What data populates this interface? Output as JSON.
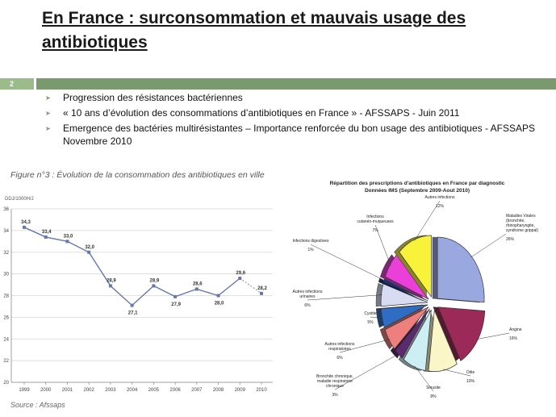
{
  "slide": {
    "title": "En France : surconsommation et mauvais usage des antibiotiques",
    "number": "2",
    "bullets": [
      "Progression des résistances bactériennes",
      "« 10 ans d’évolution des consommations d’antibiotiques en France » - AFSSAPS - Juin 2011",
      " Emergence des bactéries multirésistantes – Importance renforcée du bon usage des antibiotiques - AFSSAPS Novembre 2010"
    ],
    "bullet_icon": "arrow-bullet-icon",
    "colors": {
      "band": "#7a9a6e",
      "band_light": "#9bbb8a",
      "line": "#6677aa"
    }
  },
  "chart_data": [
    {
      "type": "line",
      "title": "Figure n°3 : Évolution de la consommation des antibiotiques en ville",
      "ylabel": "DDJ/1000H/J",
      "source": "Source : Afssaps",
      "x": [
        "1999",
        "2000",
        "2001",
        "2002",
        "2003",
        "2004",
        "2005",
        "2006",
        "2007",
        "2008",
        "2009",
        "2010"
      ],
      "values": [
        34.3,
        33.4,
        33.0,
        32.0,
        28.9,
        27.1,
        28.9,
        27.9,
        28.6,
        28.0,
        29.6,
        28.2
      ],
      "labels": [
        "34,3",
        "33,4",
        "33,0",
        "32,0",
        "28,9",
        "27,1",
        "28,9",
        "27,9",
        "28,6",
        "28,0",
        "29,6",
        "28,2"
      ],
      "yticks": [
        20,
        22,
        24,
        26,
        28,
        30,
        32,
        34,
        36
      ],
      "ylim": [
        20,
        36
      ],
      "last_segment_dashed": true,
      "grid": true
    },
    {
      "type": "pie",
      "title": "Répartition des prescriptions d'antibiotiques en France par diagnostic",
      "subtitle": "Données IMS (Septembre 2009-Aout 2010)",
      "exploded_3d": true,
      "slices": [
        {
          "label": "Maladies Virales (bronchite, rhinopharyngite, syndrome grippal)",
          "value": 26,
          "pct": "26%",
          "color": "#9aa8e0"
        },
        {
          "label": "Angine",
          "value": 16,
          "pct": "16%",
          "color": "#9c2a58"
        },
        {
          "label": "Otite",
          "value": 10,
          "pct": "10%",
          "color": "#fbf6c8"
        },
        {
          "label": "Sinusite",
          "value": 8,
          "pct": "8%",
          "color": "#cdeff4"
        },
        {
          "label": "Bronchite chronique, maladie respiratoire chronique",
          "value": 3,
          "pct": "3%",
          "color": "#5c2a6e"
        },
        {
          "label": "Autres infections respiratoires",
          "value": 6,
          "pct": "6%",
          "color": "#ee7f7f"
        },
        {
          "label": "Cystite",
          "value": 5,
          "pct": "5%",
          "color": "#2f6dc4"
        },
        {
          "label": "Autres infections urinaires",
          "value": 6,
          "pct": "6%",
          "color": "#d8dcf2"
        },
        {
          "label": "Infections digestives",
          "value": 1,
          "pct": "1%",
          "color": "#1f2f7a"
        },
        {
          "label": "Infections cutanéo-muqueuses",
          "value": 7,
          "pct": "7%",
          "color": "#ea3fd8"
        },
        {
          "label": "Autres infections",
          "value": 12,
          "pct": "12%",
          "color": "#f9f23a"
        }
      ]
    }
  ]
}
